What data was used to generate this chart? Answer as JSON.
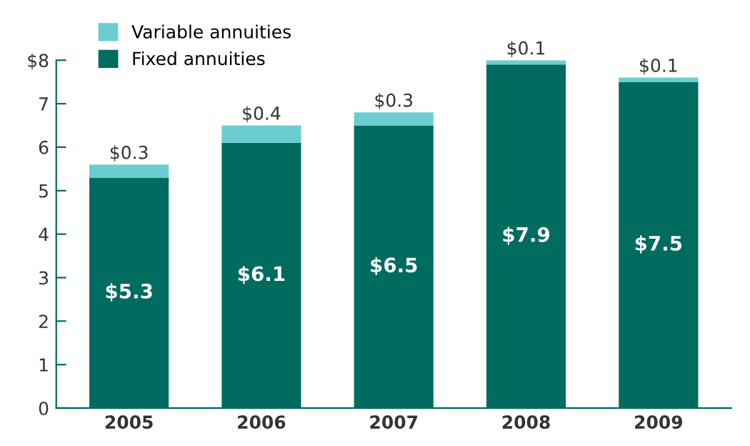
{
  "chart_data": {
    "type": "bar",
    "stacked": true,
    "categories": [
      "2005",
      "2006",
      "2007",
      "2008",
      "2009"
    ],
    "series": [
      {
        "name": "Fixed annuities",
        "color": "#006b5f",
        "values": [
          5.3,
          6.1,
          6.5,
          7.9,
          7.5
        ],
        "value_labels": [
          "$5.3",
          "$6.1",
          "$6.5",
          "$7.9",
          "$7.5"
        ]
      },
      {
        "name": "Variable annuities",
        "color": "#6ccdd1",
        "values": [
          0.3,
          0.4,
          0.3,
          0.1,
          0.1
        ],
        "value_labels": [
          "$0.3",
          "$0.4",
          "$0.3",
          "$0.1",
          "$0.1"
        ]
      }
    ],
    "ylim": [
      0,
      8
    ],
    "yticks": [
      0,
      1,
      2,
      3,
      4,
      5,
      6,
      7,
      {
        "value": 8,
        "label": "$8"
      }
    ],
    "grid": false,
    "legend": "top left"
  }
}
